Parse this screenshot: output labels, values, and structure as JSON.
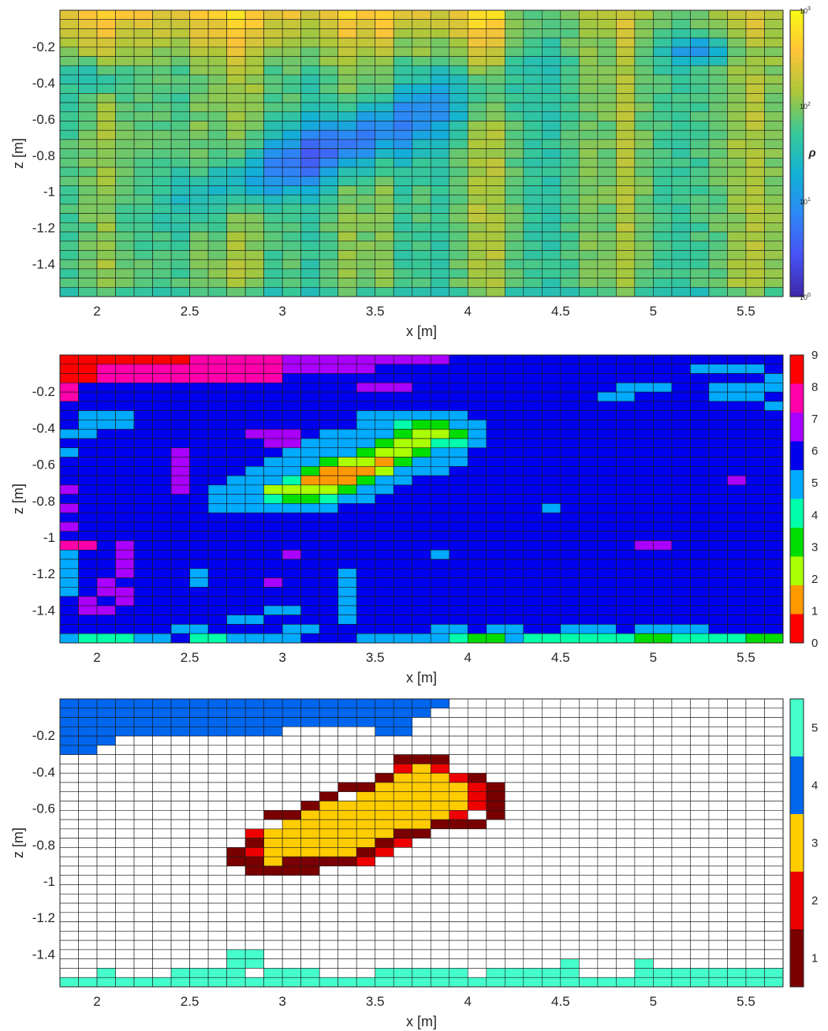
{
  "chart_data": [
    {
      "type": "heatmap",
      "title": "",
      "xlabel": "x [m]",
      "ylabel": "z [m]",
      "xlim": [
        1.8,
        5.7
      ],
      "ylim": [
        -1.58,
        0
      ],
      "xticks": [
        "2",
        "2.5",
        "3",
        "3.5",
        "4",
        "4.5",
        "5",
        "5.5"
      ],
      "yticks": [
        "-0.2",
        "-0.4",
        "-0.6",
        "-0.8",
        "-1",
        "-1.2",
        "-1.4"
      ],
      "grid": true,
      "colorbar": {
        "label": "ρ",
        "scale": "log",
        "range": [
          1,
          1000
        ],
        "ticks": [
          "10^0",
          "10^1",
          "10^2",
          "10^3"
        ],
        "colormap": "parula"
      },
      "description_values": {
        "background_log10_rho": 1.9,
        "top_band_log10_rho": 2.6,
        "anomaly_center_x": 3.3,
        "anomaly_center_z": -0.75,
        "anomaly_min_log10_rho": 0.65
      }
    },
    {
      "type": "heatmap",
      "title": "",
      "xlabel": "x [m]",
      "ylabel": "z [m]",
      "xlim": [
        1.8,
        5.7
      ],
      "ylim": [
        -1.58,
        0
      ],
      "xticks": [
        "2",
        "2.5",
        "3",
        "3.5",
        "4",
        "4.5",
        "5",
        "5.5"
      ],
      "yticks": [
        "-0.2",
        "-0.4",
        "-0.6",
        "-0.8",
        "-1",
        "-1.2",
        "-1.4"
      ],
      "grid": true,
      "colorbar": {
        "ticks": [
          "0",
          "1",
          "2",
          "3",
          "4",
          "5",
          "6",
          "7",
          "8",
          "9"
        ],
        "colors": [
          "#ff0000",
          "#ff9900",
          "#aaff00",
          "#00dd00",
          "#00ffaa",
          "#00aaff",
          "#0000ee",
          "#aa00ff",
          "#ff00aa",
          "#ff0000"
        ]
      },
      "background_class": 6
    },
    {
      "type": "heatmap",
      "title": "",
      "xlabel": "x [m]",
      "ylabel": "z [m]",
      "xlim": [
        1.8,
        5.7
      ],
      "ylim": [
        -1.58,
        0
      ],
      "xticks": [
        "2",
        "2.5",
        "3",
        "3.5",
        "4",
        "4.5",
        "5",
        "5.5"
      ],
      "yticks": [
        "-0.2",
        "-0.4",
        "-0.6",
        "-0.8",
        "-1",
        "-1.2",
        "-1.4"
      ],
      "grid": true,
      "colorbar": {
        "ticks": [
          "1",
          "2",
          "3",
          "4",
          "5"
        ],
        "colors": [
          "#7a0000",
          "#ee0000",
          "#ffcc00",
          "#0066ee",
          "#44ffcc"
        ]
      },
      "background": "none"
    }
  ]
}
